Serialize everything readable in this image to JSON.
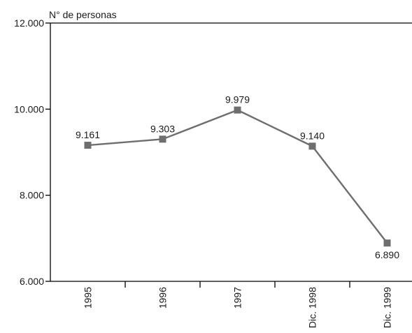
{
  "chart_data": {
    "type": "line",
    "title": "",
    "xlabel": "",
    "ylabel": "N° de personas",
    "categories": [
      "1995",
      "1996",
      "1997",
      "Dic. 1998",
      "Dic. 1999"
    ],
    "series": [
      {
        "name": "",
        "values": [
          9161,
          9303,
          9979,
          9140,
          6890
        ],
        "labels": [
          "9.161",
          "9.303",
          "9.979",
          "9.140",
          "6.890"
        ]
      }
    ],
    "ylim": [
      6000,
      12000
    ],
    "yticks": [
      6000,
      8000,
      10000,
      12000
    ],
    "ytick_labels": [
      "6.000",
      "8.000",
      "10.000",
      "12.000"
    ],
    "grid": false,
    "line_color": "#6e6e6e",
    "marker": "square",
    "data_label_positions": [
      "above",
      "above",
      "above",
      "above",
      "below"
    ]
  }
}
